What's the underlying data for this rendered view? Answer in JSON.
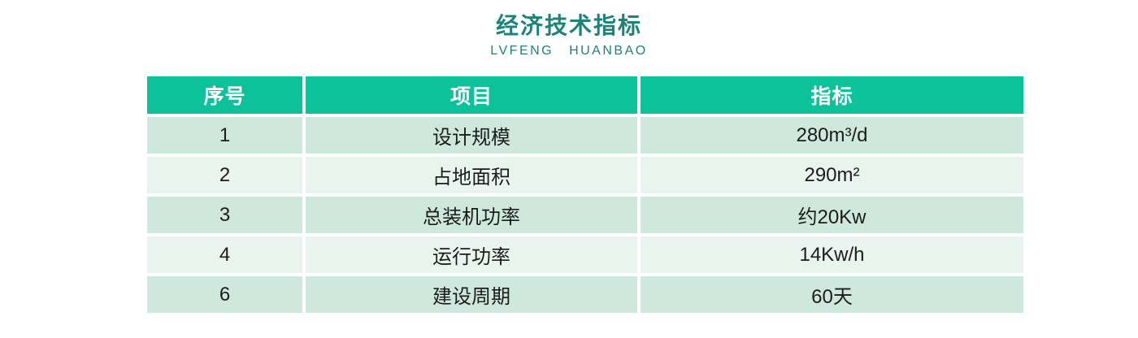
{
  "page": {
    "title": "经济技术指标",
    "subtitle": "LVFENG HUANBAO"
  },
  "table": {
    "columns": [
      "序号",
      "项目",
      "指标"
    ],
    "rows": [
      {
        "no": "1",
        "item": "设计规模",
        "value": "280m³/d"
      },
      {
        "no": "2",
        "item": "占地面积",
        "value": "290m²"
      },
      {
        "no": "3",
        "item": "总装机功率",
        "value": "约20Kw"
      },
      {
        "no": "4",
        "item": "运行功率",
        "value": "14Kw/h"
      },
      {
        "no": "6",
        "item": "建设周期",
        "value": "60天"
      }
    ]
  },
  "colors": {
    "title": "#1b8479",
    "header_bg": "#0cc29b",
    "row_odd_bg": "#cfe8de",
    "row_even_bg": "#e9f4ef",
    "cell_text": "#1c1c1c",
    "header_text": "#ffffff"
  }
}
